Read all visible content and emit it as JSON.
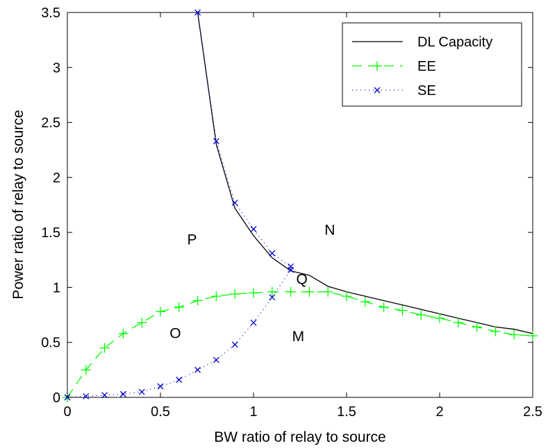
{
  "chart_data": {
    "type": "line",
    "title": "",
    "xlabel": "BW ratio of relay to source",
    "ylabel": "Power ratio of relay to source",
    "xlim": [
      0,
      2.5
    ],
    "ylim": [
      0,
      3.5
    ],
    "xticks": [
      0,
      0.5,
      1,
      1.5,
      2,
      2.5
    ],
    "xtick_labels": [
      "0",
      "0.5",
      "1",
      "1.5",
      "2",
      "2.5"
    ],
    "yticks": [
      0,
      0.5,
      1,
      1.5,
      2,
      2.5,
      3,
      3.5
    ],
    "ytick_labels": [
      "0",
      "0.5",
      "1",
      "1.5",
      "2",
      "2.5",
      "3",
      "3.5"
    ],
    "grid": false,
    "legend_position": "top-right",
    "series": [
      {
        "name": "DL Capacity",
        "color": "#000000",
        "line": "solid",
        "marker": "none",
        "x": [
          0.7,
          0.8,
          0.9,
          1.0,
          1.1,
          1.2,
          1.3,
          1.4,
          1.5,
          1.6,
          1.7,
          1.8,
          1.9,
          2.0,
          2.1,
          2.2,
          2.3,
          2.4,
          2.5
        ],
        "y": [
          3.5,
          2.3,
          1.72,
          1.47,
          1.27,
          1.15,
          1.11,
          1.01,
          0.96,
          0.92,
          0.88,
          0.84,
          0.8,
          0.76,
          0.72,
          0.68,
          0.64,
          0.62,
          0.58
        ]
      },
      {
        "name": "EE",
        "color": "#00ff00",
        "line": "dashed",
        "marker": "plus",
        "x": [
          0,
          0.1,
          0.2,
          0.3,
          0.4,
          0.5,
          0.6,
          0.7,
          0.8,
          0.9,
          1.0,
          1.1,
          1.2,
          1.3,
          1.4,
          1.5,
          1.6,
          1.7,
          1.8,
          1.9,
          2.0,
          2.1,
          2.2,
          2.3,
          2.4,
          2.5
        ],
        "y": [
          0,
          0.25,
          0.45,
          0.58,
          0.68,
          0.78,
          0.82,
          0.88,
          0.92,
          0.94,
          0.95,
          0.96,
          0.96,
          0.96,
          0.96,
          0.92,
          0.87,
          0.82,
          0.79,
          0.75,
          0.72,
          0.68,
          0.64,
          0.6,
          0.57,
          0.56
        ]
      },
      {
        "name": "SE",
        "color": "#0000cc",
        "line": "dotted",
        "marker": "x",
        "x": [
          0,
          0.1,
          0.2,
          0.3,
          0.4,
          0.5,
          0.6,
          0.7,
          0.8,
          0.9,
          1.0,
          1.1,
          1.2,
          1.2,
          1.1,
          1.0,
          0.9,
          0.8,
          0.7
        ],
        "y": [
          0,
          0.01,
          0.02,
          0.03,
          0.05,
          0.1,
          0.16,
          0.25,
          0.34,
          0.48,
          0.68,
          0.91,
          1.16,
          1.19,
          1.31,
          1.53,
          1.77,
          2.33,
          3.5
        ]
      }
    ],
    "annotations": [
      {
        "text": "P",
        "x": 0.67,
        "y": 1.39
      },
      {
        "text": "N",
        "x": 1.41,
        "y": 1.48
      },
      {
        "text": "Q",
        "x": 1.26,
        "y": 1.03
      },
      {
        "text": "O",
        "x": 0.58,
        "y": 0.54
      },
      {
        "text": "M",
        "x": 1.24,
        "y": 0.51
      }
    ]
  }
}
